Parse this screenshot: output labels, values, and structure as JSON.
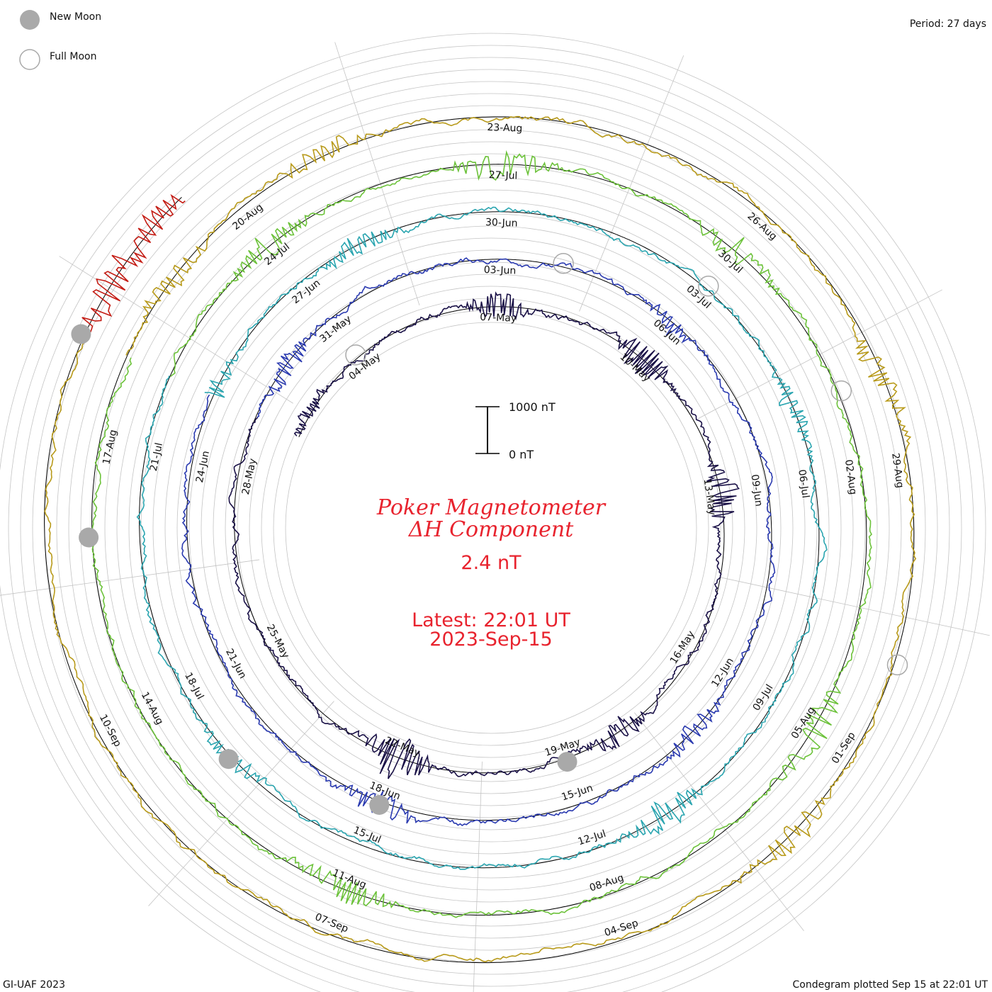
{
  "header": {
    "legend_new_moon": "New Moon",
    "legend_full_moon": "Full Moon",
    "period": "Period: 27 days"
  },
  "footer": {
    "left": "GI-UAF 2023",
    "right": "Condegram plotted Sep 15 at 22:01 UT"
  },
  "center": {
    "title_line1": "Poker Magnetometer",
    "title_line2": "ΔH Component",
    "current_value": "2.4 nT",
    "latest_line1": "Latest: 22:01 UT",
    "latest_line2": "2023-Sep-15",
    "scale_top": "1000 nT",
    "scale_bottom": "0 nT"
  },
  "colors": {
    "grid": "#c4c4c4",
    "baseline": "#000000",
    "title": "#e8232e",
    "moon_new": "#a9a9a9",
    "moon_full_stroke": "#a9a9a9"
  },
  "chart_data": {
    "type": "line",
    "title": "Poker Magnetometer ΔH Component",
    "period_days": 27,
    "scale_nT": [
      0,
      1000
    ],
    "rotations": [
      {
        "start": "02-May",
        "color": "#1a1147",
        "labels": [
          "04-May",
          "07-May",
          "10-May",
          "13-May",
          "16-May",
          "19-May",
          "22-May",
          "25-May",
          "28-May"
        ],
        "activity": [
          {
            "day": 0.5,
            "nT": 120
          },
          {
            "day": 5,
            "nT": 230
          },
          {
            "day": 8,
            "nT": 270
          },
          {
            "day": 11,
            "nT": 260
          },
          {
            "day": 16,
            "nT": 200
          },
          {
            "day": 20,
            "nT": 340
          }
        ]
      },
      {
        "start": "29-May",
        "color": "#2a3ab0",
        "labels": [
          "31-May",
          "03-Jun",
          "06-Jun",
          "09-Jun",
          "12-Jun",
          "15-Jun",
          "18-Jun",
          "21-Jun",
          "24-Jun"
        ],
        "activity": [
          {
            "day": 1,
            "nT": 180
          },
          {
            "day": 8,
            "nT": 100
          },
          {
            "day": 15,
            "nT": 150
          },
          {
            "day": 20,
            "nT": 180
          }
        ]
      },
      {
        "start": "25-Jun",
        "color": "#2aa5b0",
        "labels": [
          "27-Jun",
          "30-Jun",
          "03-Jul",
          "06-Jul",
          "09-Jul",
          "12-Jul",
          "15-Jul",
          "18-Jul",
          "21-Jul"
        ],
        "activity": [
          {
            "day": 0,
            "nT": 160
          },
          {
            "day": 3,
            "nT": 150
          },
          {
            "day": 10,
            "nT": 140
          },
          {
            "day": 16,
            "nT": 210
          },
          {
            "day": 22,
            "nT": 120
          }
        ]
      },
      {
        "start": "22-Jul",
        "color": "#6cc23a",
        "labels": [
          "24-Jul",
          "27-Jul",
          "30-Jul",
          "02-Aug",
          "05-Aug",
          "08-Aug",
          "11-Aug",
          "14-Aug",
          "17-Aug"
        ],
        "activity": [
          {
            "day": 2,
            "nT": 200
          },
          {
            "day": 5,
            "nT": 220
          },
          {
            "day": 8,
            "nT": 180
          },
          {
            "day": 14,
            "nT": 250
          },
          {
            "day": 20,
            "nT": 200
          }
        ]
      },
      {
        "start": "18-Aug",
        "color": "#b89a1a",
        "labels": [
          "20-Aug",
          "23-Aug",
          "26-Aug",
          "29-Aug",
          "01-Sep",
          "04-Sep",
          "07-Sep",
          "10-Sep"
        ],
        "activity": [
          {
            "day": 1,
            "nT": 150
          },
          {
            "day": 3,
            "nT": 140
          },
          {
            "day": 10,
            "nT": 160
          },
          {
            "day": 15,
            "nT": 190
          }
        ]
      },
      {
        "start": "14-Sep",
        "color": "#c41c14",
        "labels": [],
        "activity": [
          {
            "day": 0.5,
            "nT": 250
          },
          {
            "day": 1.2,
            "nT": 200
          }
        ]
      }
    ],
    "new_moons": [
      "19-May",
      "18-Jun",
      "17-Jul",
      "16-Aug",
      "14-Sep"
    ],
    "full_moons": [
      "04-May",
      "04-Jun",
      "03-Jul",
      "01-Aug",
      "31-Aug"
    ]
  }
}
